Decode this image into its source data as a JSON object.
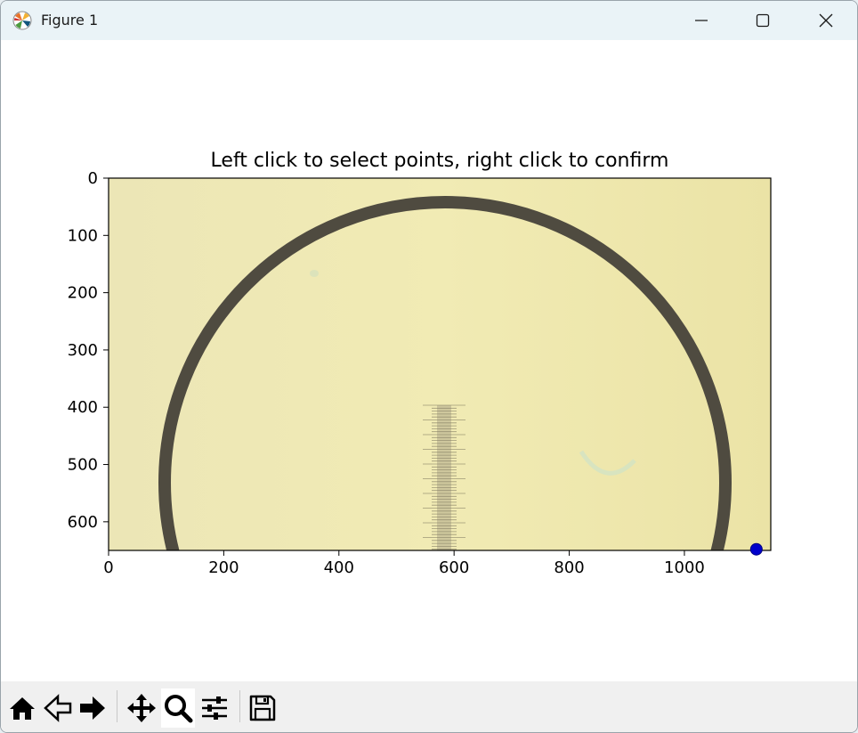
{
  "window": {
    "title": "Figure 1",
    "controls": {
      "minimize": "minimize-icon",
      "maximize": "maximize-icon",
      "close": "close-icon"
    }
  },
  "plot": {
    "title": "Left click to select points, right click to confirm",
    "x_ticks": [
      "0",
      "200",
      "400",
      "600",
      "800",
      "1000"
    ],
    "y_ticks": [
      "0",
      "100",
      "200",
      "300",
      "400",
      "500",
      "600"
    ],
    "image_bg": "#efe8b0",
    "ring_color": "#4f4b40",
    "marker_color": "#0000cc",
    "chart_data": {
      "type": "scatter",
      "xlim": [
        0,
        1150
      ],
      "ylim": [
        650,
        0
      ],
      "points": [
        {
          "x": 1125,
          "y": 648
        }
      ]
    }
  },
  "toolbar": {
    "tools": [
      {
        "name": "home",
        "icon": "home-icon"
      },
      {
        "name": "back",
        "icon": "back-arrow-icon"
      },
      {
        "name": "forward",
        "icon": "forward-arrow-icon"
      },
      {
        "name": "pan",
        "icon": "move-icon"
      },
      {
        "name": "zoom",
        "icon": "magnifier-icon",
        "active": true
      },
      {
        "name": "configure",
        "icon": "sliders-icon"
      },
      {
        "name": "save",
        "icon": "floppy-disk-icon"
      }
    ]
  }
}
